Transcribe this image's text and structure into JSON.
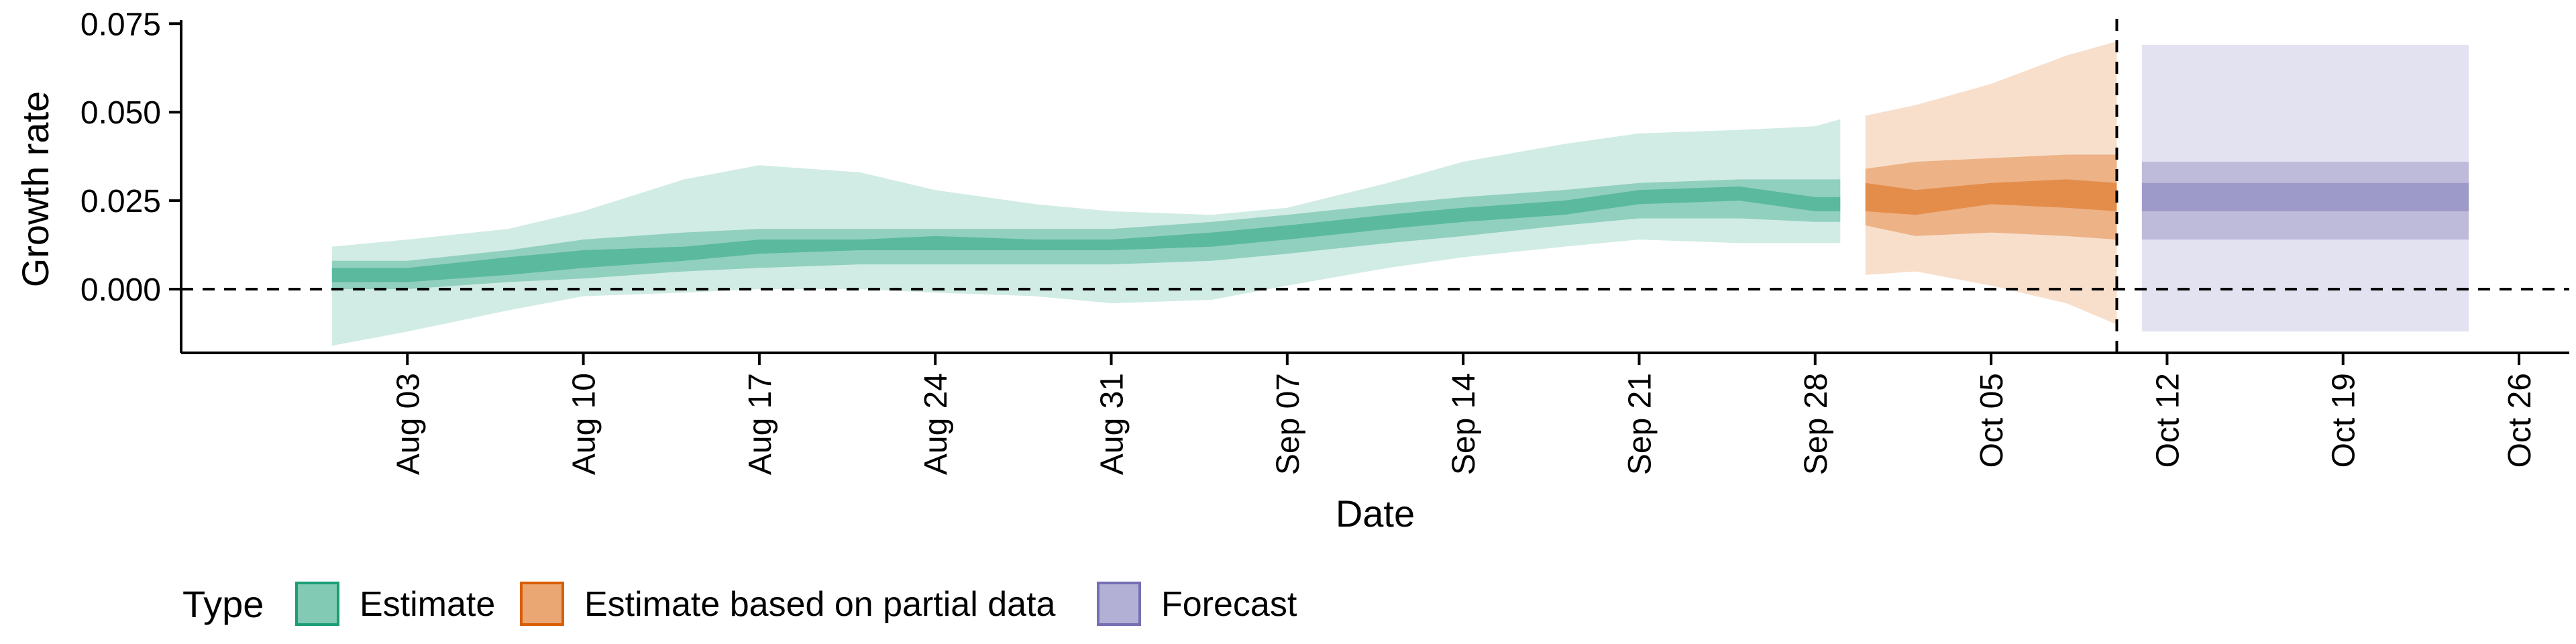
{
  "chart_data": {
    "type": "area",
    "xlabel": "Date",
    "ylabel": "Growth rate",
    "ylim": [
      -0.018,
      0.076
    ],
    "xlim": [
      "2021-07-25",
      "2021-10-28"
    ],
    "y_ticks": [
      {
        "value": 0.0,
        "label": "0.000"
      },
      {
        "value": 0.025,
        "label": "0.025"
      },
      {
        "value": 0.05,
        "label": "0.050"
      },
      {
        "value": 0.075,
        "label": "0.075"
      }
    ],
    "x_ticks": [
      {
        "date": "2021-08-03",
        "label": "Aug 03"
      },
      {
        "date": "2021-08-10",
        "label": "Aug 10"
      },
      {
        "date": "2021-08-17",
        "label": "Aug 17"
      },
      {
        "date": "2021-08-24",
        "label": "Aug 24"
      },
      {
        "date": "2021-08-31",
        "label": "Aug 31"
      },
      {
        "date": "2021-09-07",
        "label": "Sep 07"
      },
      {
        "date": "2021-09-14",
        "label": "Sep 14"
      },
      {
        "date": "2021-09-21",
        "label": "Sep 21"
      },
      {
        "date": "2021-09-28",
        "label": "Sep 28"
      },
      {
        "date": "2021-10-05",
        "label": "Oct 05"
      },
      {
        "date": "2021-10-12",
        "label": "Oct 12"
      },
      {
        "date": "2021-10-19",
        "label": "Oct 19"
      },
      {
        "date": "2021-10-26",
        "label": "Oct 26"
      }
    ],
    "reference_lines": {
      "horizontal_y": 0.0,
      "vertical_date": "2021-10-10"
    },
    "legend": {
      "title": "Type",
      "position": "bottom",
      "entries": [
        "Estimate",
        "Estimate based on partial data",
        "Forecast"
      ]
    },
    "series": [
      {
        "name": "Estimate",
        "color": "#1b9e77",
        "points": [
          {
            "date": "2021-07-31",
            "lo90": -0.016,
            "lo50": 0.0,
            "lo20": 0.002,
            "hi20": 0.006,
            "hi50": 0.008,
            "hi90": 0.012
          },
          {
            "date": "2021-08-03",
            "lo90": -0.012,
            "lo50": 0.0,
            "lo20": 0.002,
            "hi20": 0.006,
            "hi50": 0.008,
            "hi90": 0.014
          },
          {
            "date": "2021-08-07",
            "lo90": -0.006,
            "lo50": 0.002,
            "lo20": 0.004,
            "hi20": 0.009,
            "hi50": 0.011,
            "hi90": 0.017
          },
          {
            "date": "2021-08-10",
            "lo90": -0.002,
            "lo50": 0.003,
            "lo20": 0.006,
            "hi20": 0.011,
            "hi50": 0.014,
            "hi90": 0.022
          },
          {
            "date": "2021-08-14",
            "lo90": -0.001,
            "lo50": 0.005,
            "lo20": 0.008,
            "hi20": 0.012,
            "hi50": 0.016,
            "hi90": 0.031
          },
          {
            "date": "2021-08-17",
            "lo90": 0.0,
            "lo50": 0.006,
            "lo20": 0.01,
            "hi20": 0.014,
            "hi50": 0.017,
            "hi90": 0.035
          },
          {
            "date": "2021-08-21",
            "lo90": 0.0,
            "lo50": 0.007,
            "lo20": 0.011,
            "hi20": 0.014,
            "hi50": 0.017,
            "hi90": 0.033
          },
          {
            "date": "2021-08-24",
            "lo90": -0.001,
            "lo50": 0.007,
            "lo20": 0.011,
            "hi20": 0.015,
            "hi50": 0.017,
            "hi90": 0.028
          },
          {
            "date": "2021-08-28",
            "lo90": -0.002,
            "lo50": 0.007,
            "lo20": 0.011,
            "hi20": 0.014,
            "hi50": 0.017,
            "hi90": 0.024
          },
          {
            "date": "2021-08-31",
            "lo90": -0.004,
            "lo50": 0.007,
            "lo20": 0.011,
            "hi20": 0.014,
            "hi50": 0.017,
            "hi90": 0.022
          },
          {
            "date": "2021-09-04",
            "lo90": -0.003,
            "lo50": 0.008,
            "lo20": 0.012,
            "hi20": 0.016,
            "hi50": 0.019,
            "hi90": 0.021
          },
          {
            "date": "2021-09-07",
            "lo90": 0.001,
            "lo50": 0.01,
            "lo20": 0.014,
            "hi20": 0.018,
            "hi50": 0.021,
            "hi90": 0.023
          },
          {
            "date": "2021-09-11",
            "lo90": 0.006,
            "lo50": 0.013,
            "lo20": 0.017,
            "hi20": 0.021,
            "hi50": 0.024,
            "hi90": 0.03
          },
          {
            "date": "2021-09-14",
            "lo90": 0.009,
            "lo50": 0.015,
            "lo20": 0.019,
            "hi20": 0.023,
            "hi50": 0.026,
            "hi90": 0.036
          },
          {
            "date": "2021-09-18",
            "lo90": 0.012,
            "lo50": 0.018,
            "lo20": 0.021,
            "hi20": 0.025,
            "hi50": 0.028,
            "hi90": 0.041
          },
          {
            "date": "2021-09-21",
            "lo90": 0.014,
            "lo50": 0.02,
            "lo20": 0.024,
            "hi20": 0.028,
            "hi50": 0.03,
            "hi90": 0.044
          },
          {
            "date": "2021-09-25",
            "lo90": 0.013,
            "lo50": 0.02,
            "lo20": 0.025,
            "hi20": 0.029,
            "hi50": 0.031,
            "hi90": 0.045
          },
          {
            "date": "2021-09-28",
            "lo90": 0.013,
            "lo50": 0.019,
            "lo20": 0.022,
            "hi20": 0.026,
            "hi50": 0.031,
            "hi90": 0.046
          },
          {
            "date": "2021-09-29",
            "lo90": 0.013,
            "lo50": 0.019,
            "lo20": 0.022,
            "hi20": 0.026,
            "hi50": 0.031,
            "hi90": 0.048
          }
        ]
      },
      {
        "name": "Estimate based on partial data",
        "color": "#d95f02",
        "points": [
          {
            "date": "2021-09-30",
            "lo90": 0.004,
            "lo50": 0.018,
            "lo20": 0.022,
            "hi20": 0.03,
            "hi50": 0.034,
            "hi90": 0.049
          },
          {
            "date": "2021-10-02",
            "lo90": 0.005,
            "lo50": 0.015,
            "lo20": 0.021,
            "hi20": 0.028,
            "hi50": 0.036,
            "hi90": 0.052
          },
          {
            "date": "2021-10-05",
            "lo90": 0.001,
            "lo50": 0.016,
            "lo20": 0.024,
            "hi20": 0.03,
            "hi50": 0.037,
            "hi90": 0.058
          },
          {
            "date": "2021-10-08",
            "lo90": -0.004,
            "lo50": 0.015,
            "lo20": 0.023,
            "hi20": 0.031,
            "hi50": 0.038,
            "hi90": 0.066
          },
          {
            "date": "2021-10-10",
            "lo90": -0.01,
            "lo50": 0.014,
            "lo20": 0.022,
            "hi20": 0.03,
            "hi50": 0.038,
            "hi90": 0.07
          }
        ]
      },
      {
        "name": "Forecast",
        "color": "#7570b3",
        "points": [
          {
            "date": "2021-10-11",
            "lo90": -0.012,
            "lo50": 0.014,
            "lo20": 0.022,
            "hi20": 0.03,
            "hi50": 0.036,
            "hi90": 0.069
          },
          {
            "date": "2021-10-24",
            "lo90": -0.012,
            "lo50": 0.014,
            "lo20": 0.022,
            "hi20": 0.03,
            "hi50": 0.036,
            "hi90": 0.069
          }
        ]
      }
    ]
  }
}
